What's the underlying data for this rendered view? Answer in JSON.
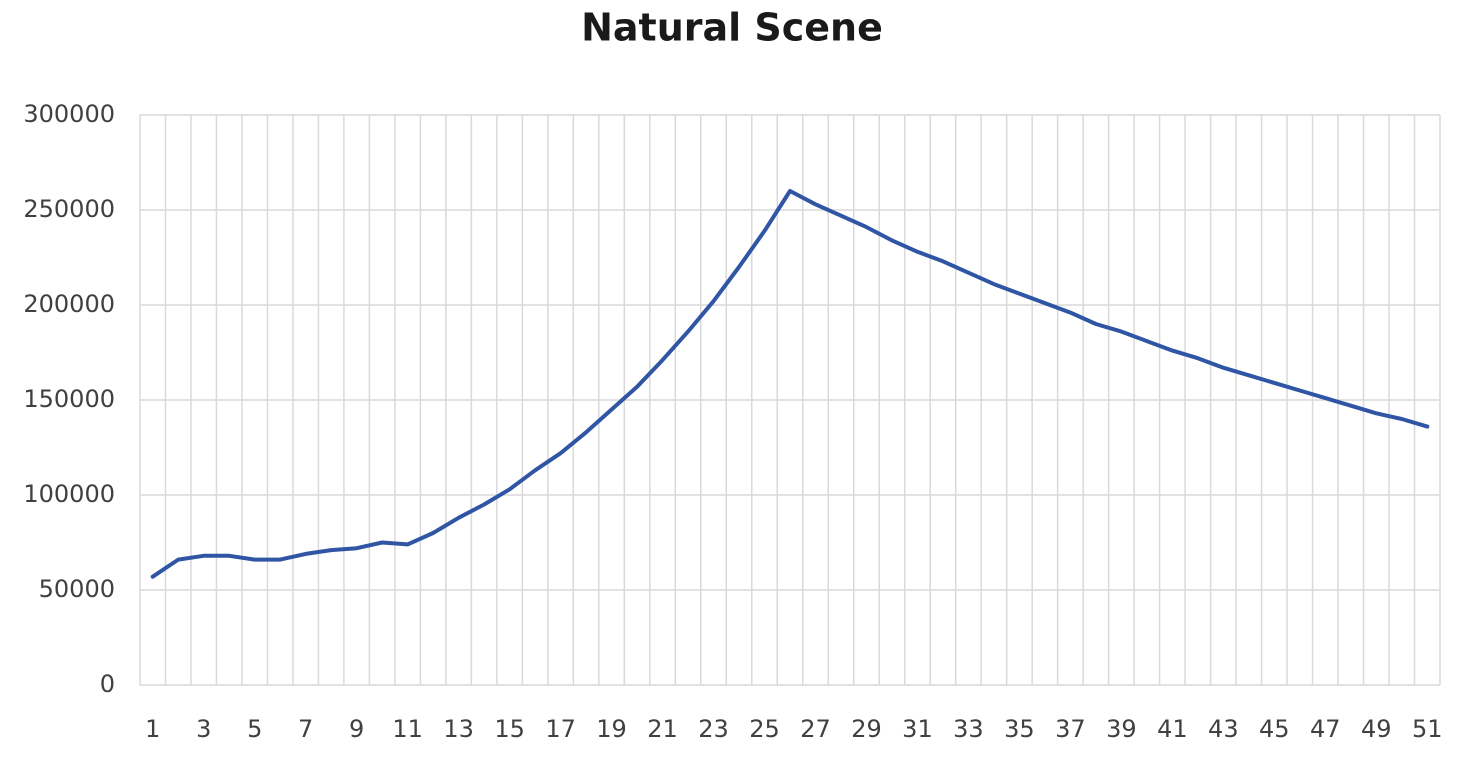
{
  "chart_data": {
    "type": "line",
    "title": "Natural Scene",
    "categories": [
      "1",
      null,
      "3",
      null,
      "5",
      null,
      "7",
      null,
      "9",
      null,
      "11",
      null,
      "13",
      null,
      "15",
      null,
      "17",
      null,
      "19",
      null,
      "21",
      null,
      "23",
      null,
      "25",
      null,
      "27",
      null,
      "29",
      null,
      "31",
      null,
      "33",
      null,
      "35",
      null,
      "37",
      null,
      "39",
      null,
      "41",
      null,
      "43",
      null,
      "45",
      null,
      "47",
      null,
      "49",
      null,
      "51"
    ],
    "values": [
      57000,
      66000,
      68000,
      68000,
      66000,
      66000,
      69000,
      71000,
      72000,
      75000,
      74000,
      80000,
      88000,
      95000,
      103000,
      113000,
      122000,
      133000,
      145000,
      157000,
      171000,
      186000,
      202000,
      220000,
      239000,
      260000,
      253000,
      247000,
      241000,
      234000,
      228000,
      223000,
      217000,
      211000,
      206000,
      201000,
      196000,
      190000,
      186000,
      181000,
      176000,
      172000,
      167000,
      163000,
      159000,
      155000,
      151000,
      147000,
      143000,
      140000,
      136000
    ],
    "color": "#2f55a4",
    "ylim": [
      0,
      300000
    ],
    "yticks": [
      0,
      50000,
      100000,
      150000,
      200000,
      250000,
      300000
    ],
    "grid": true
  }
}
